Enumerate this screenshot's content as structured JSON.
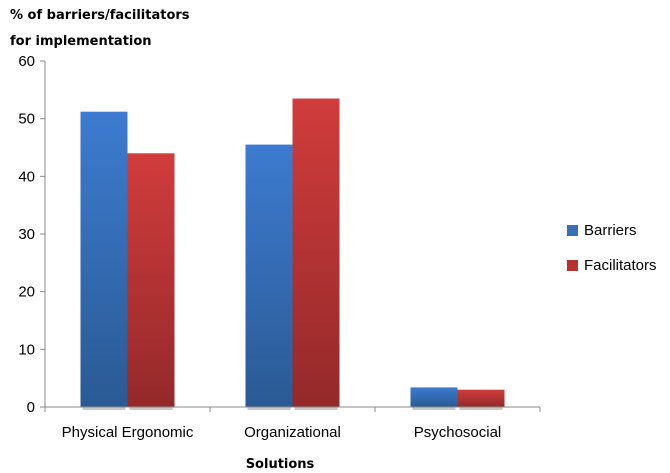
{
  "chart_data": {
    "type": "bar",
    "ylabel_lines": [
      "% of barriers/facilitators",
      "for implementation"
    ],
    "xlabel": "Solutions",
    "categories": [
      "Physical Ergonomic",
      "Organizational",
      "Psychosocial"
    ],
    "series": [
      {
        "name": "Barriers",
        "values": [
          51.2,
          45.5,
          3.4
        ],
        "color": "#3a6fb7"
      },
      {
        "name": "Facilitators",
        "values": [
          44.0,
          53.5,
          3.0
        ],
        "color": "#b83232"
      }
    ],
    "ylim": [
      0,
      60
    ],
    "yticks": [
      0,
      10,
      20,
      30,
      40,
      50,
      60
    ],
    "grid": false,
    "legend_position": "right"
  }
}
